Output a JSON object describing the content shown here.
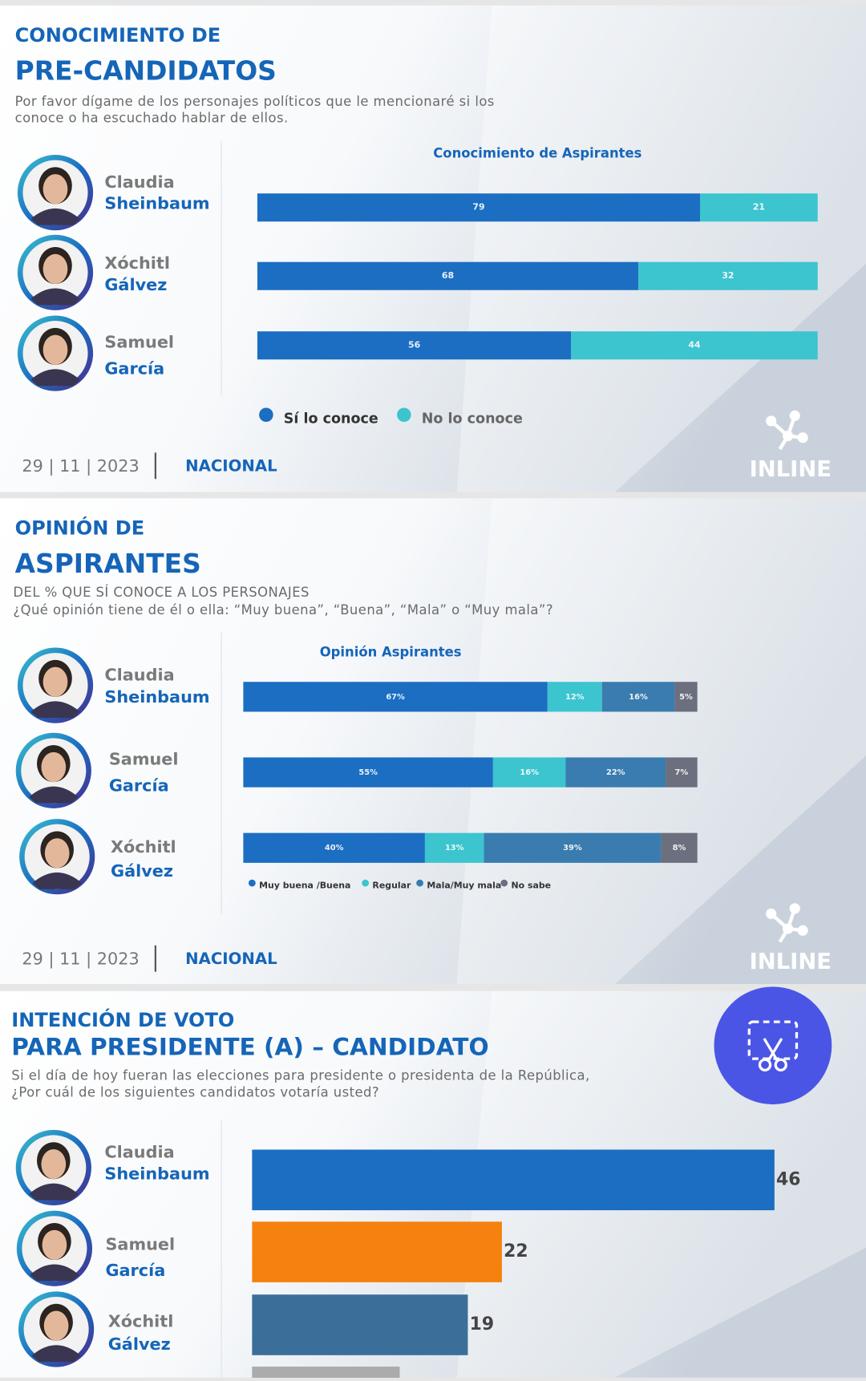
{
  "chart_data": [
    {
      "type": "bar",
      "stacked": true,
      "orientation": "horizontal",
      "heading": [
        "CONOCIMIENTO DE",
        "PRE-CANDIDATOS"
      ],
      "subtitle": [
        "Por favor dígame  de los personajes políticos que le mencionaré si los",
        "conoce o ha escuchado hablar de ellos."
      ],
      "title": "Conocimiento de Aspirantes",
      "categories": [
        [
          "Claudia",
          "Sheinbaum"
        ],
        [
          "Xóchitl",
          "Gálvez"
        ],
        [
          "Samuel",
          "García"
        ]
      ],
      "series": [
        {
          "name": "Sí lo conoce",
          "color": "#1b6ec2",
          "values": [
            79,
            68,
            56
          ]
        },
        {
          "name": "No lo conoce",
          "color": "#3cc4cf",
          "values": [
            21,
            32,
            44
          ]
        }
      ],
      "legend": "bottom",
      "date": "29 | 11 | 2023",
      "scope": "NACIONAL",
      "brand": "INLINE"
    },
    {
      "type": "bar",
      "stacked": true,
      "orientation": "horizontal",
      "heading": [
        "OPINIÓN DE",
        "ASPIRANTES"
      ],
      "subtitle": [
        "DEL % QUE SÍ CONOCE A LOS PERSONAJES",
        "¿Qué opinión tiene de él o ella: “Muy buena”, “Buena”, “Mala” o “Muy mala”?"
      ],
      "title": "Opinión Aspirantes",
      "categories": [
        [
          "Claudia",
          "Sheinbaum"
        ],
        [
          "Samuel",
          "García"
        ],
        [
          "Xóchitl",
          "Gálvez"
        ]
      ],
      "series": [
        {
          "name": "Muy buena /Buena",
          "color": "#1b6ec2",
          "values": [
            67,
            55,
            40
          ],
          "value_labels": [
            "67%",
            "55%",
            "40%"
          ]
        },
        {
          "name": "Regular",
          "color": "#3cc4cf",
          "values": [
            12,
            16,
            13
          ],
          "value_labels": [
            "12%",
            "16%",
            "13%"
          ]
        },
        {
          "name": "Mala/Muy mala",
          "color": "#3a7caf",
          "values": [
            16,
            22,
            39
          ],
          "value_labels": [
            "16%",
            "22%",
            "39%"
          ]
        },
        {
          "name": "No sabe",
          "color": "#6b6f7e",
          "values": [
            5,
            7,
            8
          ],
          "value_labels": [
            "5%",
            "7%",
            "8%"
          ]
        }
      ],
      "legend": "bottom",
      "date": "29 | 11 | 2023",
      "scope": "NACIONAL",
      "brand": "INLINE"
    },
    {
      "type": "bar",
      "stacked": false,
      "orientation": "horizontal",
      "heading": [
        "INTENCIÓN DE VOTO",
        "PARA PRESIDENTE (A) – CANDIDATO"
      ],
      "subtitle": [
        "Si el día de hoy fueran las elecciones para presidente o presidenta de la República,",
        "¿Por cuál de los siguientes  candidatos votaría usted?"
      ],
      "categories": [
        [
          "Claudia",
          "Sheinbaum"
        ],
        [
          "Samuel",
          "García"
        ],
        [
          "Xóchitl",
          "Gálvez"
        ],
        null
      ],
      "values": [
        46,
        22,
        19,
        13
      ],
      "colors": [
        "#1b6ec2",
        "#f5820e",
        "#3c6e9a",
        "#ababab"
      ]
    }
  ]
}
